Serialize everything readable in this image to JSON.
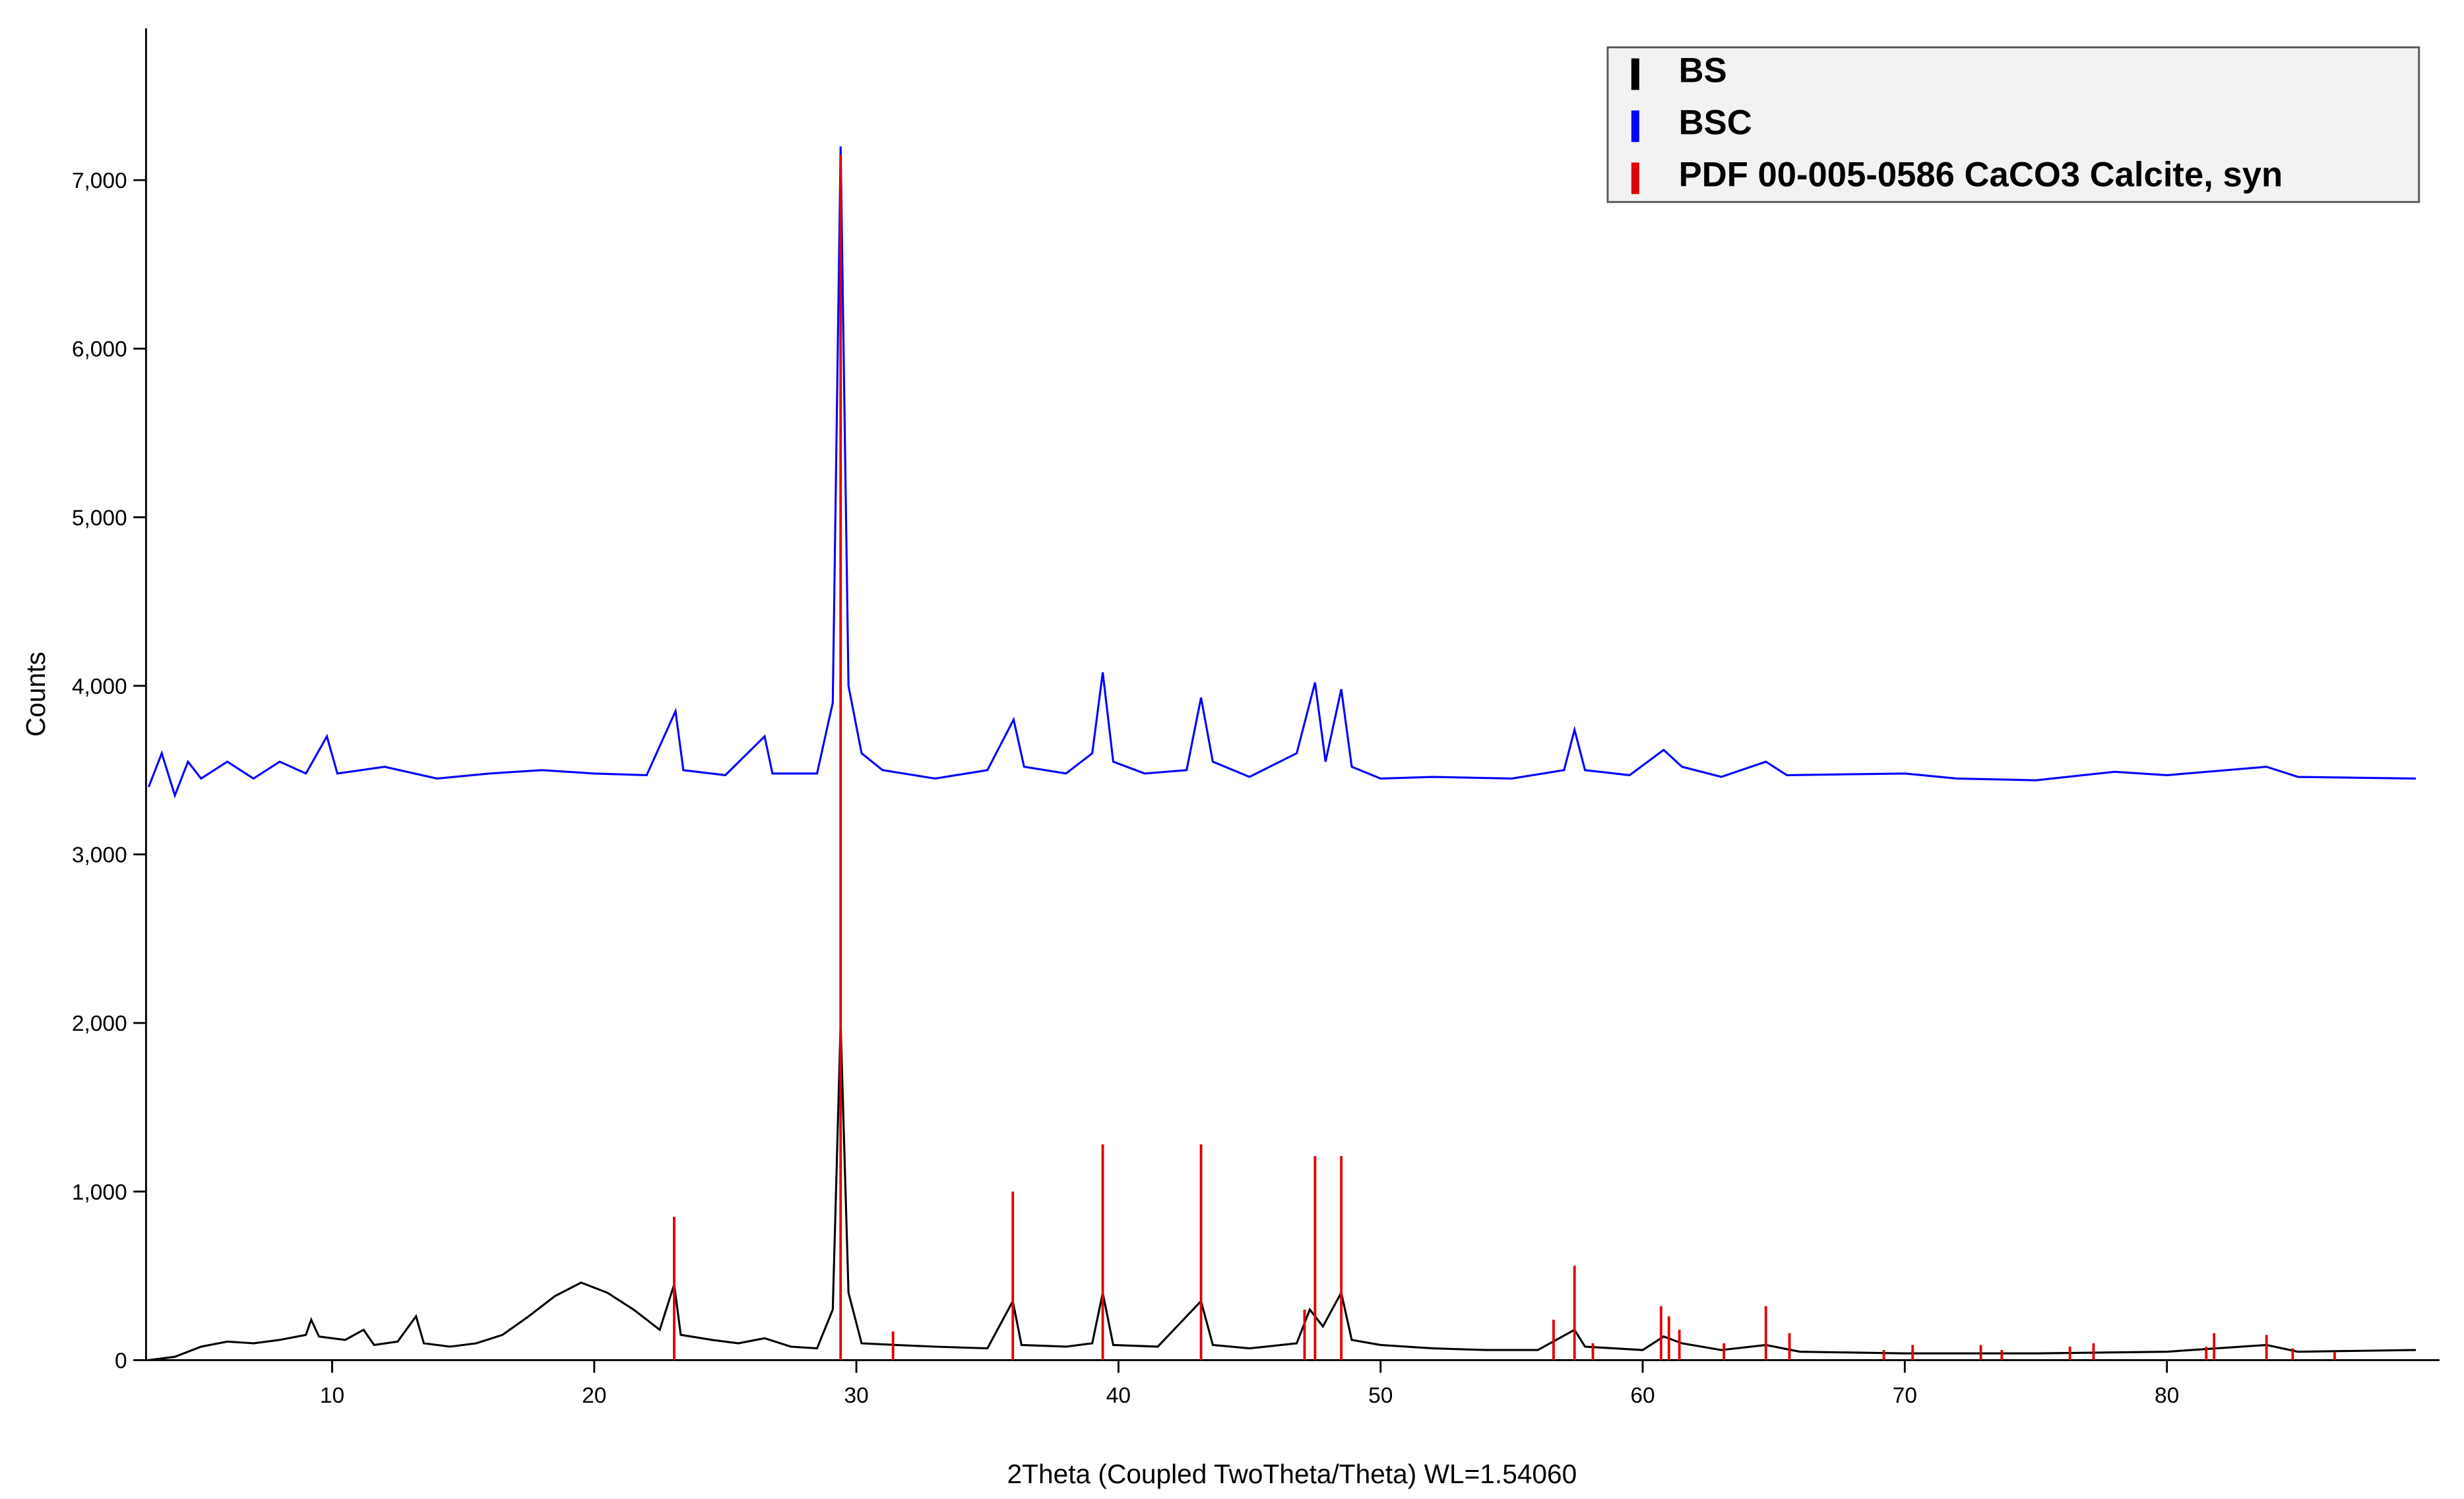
{
  "chart_data": {
    "type": "line",
    "x_label": "2Theta (Coupled TwoTheta/Theta) WL=1.54060",
    "y_label": "Counts",
    "xlim": [
      2.9,
      90.4
    ],
    "ylim": [
      0,
      7900
    ],
    "xticks": [
      10,
      20,
      30,
      40,
      50,
      60,
      70,
      80
    ],
    "yticks": [
      0,
      {
        "value": 1000,
        "label": "1,000"
      },
      {
        "value": 2000,
        "label": "2,000"
      },
      {
        "value": 3000,
        "label": "3,000"
      },
      {
        "value": 4000,
        "label": "4,000"
      },
      {
        "value": 5000,
        "label": "5,000"
      },
      {
        "value": 6000,
        "label": "6,000"
      },
      {
        "value": 7000,
        "label": "7,000"
      }
    ],
    "legend": "upper right",
    "series": [
      {
        "name": "BS",
        "color": "#000000",
        "style": "line",
        "x": [
          3.0,
          4.0,
          5.0,
          6.0,
          7.0,
          8.0,
          9.0,
          9.2,
          9.5,
          10.5,
          11.2,
          11.6,
          12.5,
          13.2,
          13.5,
          14.5,
          15.5,
          16.5,
          17.5,
          18.5,
          19.5,
          20.5,
          21.5,
          22.5,
          23.05,
          23.3,
          24.5,
          25.5,
          26.5,
          27.5,
          28.5,
          29.1,
          29.4,
          29.7,
          30.2,
          31.5,
          33,
          35,
          35.97,
          36.3,
          38,
          39.0,
          39.4,
          39.8,
          41.5,
          43.15,
          43.6,
          45,
          46.8,
          47.3,
          47.8,
          48.5,
          48.9,
          50,
          52,
          54,
          56,
          57.4,
          57.8,
          60,
          60.8,
          61.5,
          63,
          64.7,
          66,
          70,
          75,
          80,
          83.8,
          85,
          89.5
        ],
        "values": [
          0,
          20,
          80,
          110,
          100,
          120,
          150,
          240,
          140,
          120,
          180,
          90,
          110,
          260,
          100,
          80,
          100,
          150,
          260,
          380,
          460,
          400,
          300,
          180,
          450,
          150,
          120,
          100,
          130,
          80,
          70,
          300,
          2000,
          400,
          100,
          90,
          80,
          70,
          350,
          90,
          80,
          100,
          400,
          90,
          80,
          350,
          90,
          70,
          100,
          300,
          200,
          400,
          120,
          90,
          70,
          60,
          60,
          180,
          80,
          60,
          140,
          100,
          60,
          90,
          50,
          40,
          40,
          50,
          90,
          50,
          60
        ]
      },
      {
        "name": "BSC",
        "color": "#0000ff",
        "style": "line",
        "x": [
          3.0,
          3.5,
          4.0,
          4.5,
          5,
          6,
          7,
          8,
          9,
          9.8,
          10.2,
          12,
          14,
          16,
          18,
          20,
          22,
          23.1,
          23.4,
          25,
          26.5,
          26.8,
          28.5,
          29.1,
          29.4,
          29.7,
          30.2,
          31,
          33,
          35,
          36.0,
          36.4,
          38,
          39.0,
          39.4,
          39.8,
          41,
          42.6,
          43.15,
          43.6,
          45,
          46.8,
          47.5,
          47.9,
          48.5,
          48.9,
          50,
          52,
          55,
          57.0,
          57.4,
          57.8,
          59.5,
          60.8,
          61.5,
          63,
          64.7,
          65.5,
          70,
          72,
          75,
          78,
          80,
          83.8,
          85,
          89.5
        ],
        "values": [
          3400,
          3600,
          3350,
          3550,
          3450,
          3550,
          3450,
          3550,
          3480,
          3700,
          3480,
          3520,
          3450,
          3480,
          3500,
          3480,
          3470,
          3850,
          3500,
          3470,
          3700,
          3480,
          3480,
          3900,
          7200,
          4000,
          3600,
          3500,
          3450,
          3500,
          3800,
          3520,
          3480,
          3600,
          4080,
          3550,
          3480,
          3500,
          3930,
          3550,
          3460,
          3600,
          4020,
          3550,
          3980,
          3520,
          3450,
          3460,
          3450,
          3500,
          3740,
          3500,
          3470,
          3620,
          3520,
          3460,
          3550,
          3470,
          3480,
          3450,
          3440,
          3490,
          3470,
          3520,
          3460,
          3450
        ]
      },
      {
        "name": "PDF 00-005-0586 CaCO3 Calcite, syn",
        "color": "#e00000",
        "style": "stem",
        "x": [
          23.05,
          29.4,
          31.4,
          35.97,
          39.4,
          43.15,
          47.1,
          47.5,
          48.5,
          56.6,
          57.4,
          58.1,
          60.7,
          61.0,
          61.4,
          63.1,
          64.7,
          65.6,
          69.2,
          70.3,
          72.9,
          73.7,
          76.3,
          77.2,
          81.5,
          81.8,
          83.8,
          84.8,
          86.4
        ],
        "values": [
          850,
          7150,
          170,
          1000,
          1280,
          1280,
          300,
          1210,
          1210,
          240,
          560,
          100,
          320,
          260,
          180,
          100,
          320,
          160,
          60,
          90,
          90,
          60,
          80,
          100,
          80,
          160,
          150,
          70,
          50
        ]
      }
    ]
  }
}
